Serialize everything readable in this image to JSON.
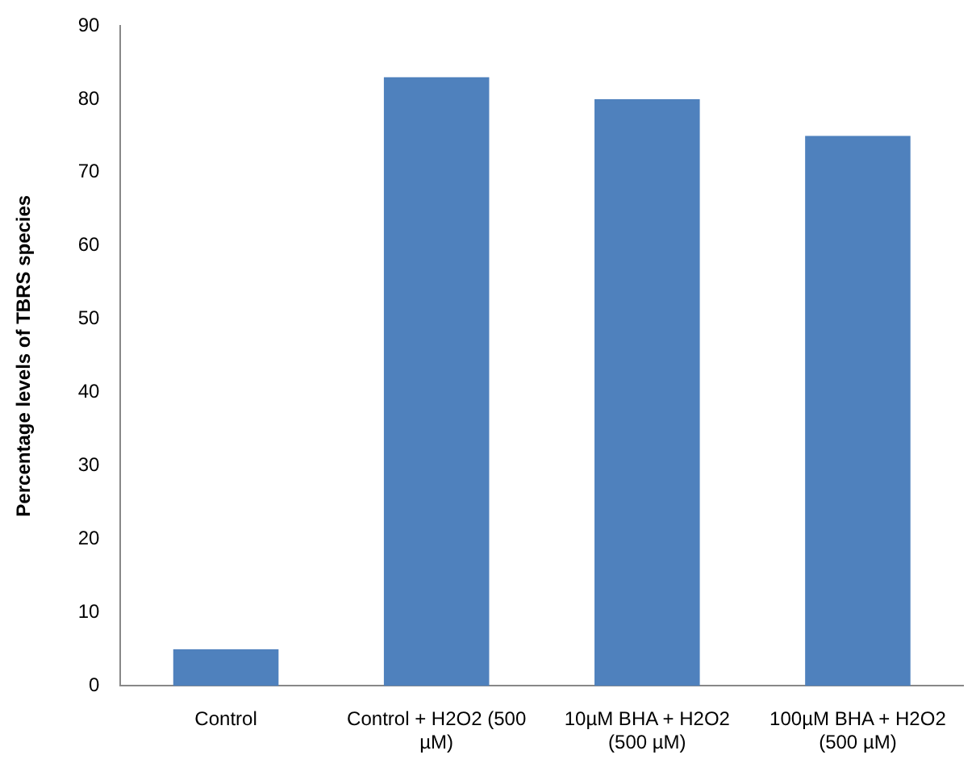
{
  "chart_data": {
    "type": "bar",
    "ylabel": "Percentage levels of TBRS species",
    "categories": [
      "Control",
      "Control + H2O2 (500 µM)",
      "10µM BHA + H2O2 (500 µM)",
      "100µM BHA + H2O2 (500 µM)"
    ],
    "values": [
      5,
      83,
      80,
      75
    ],
    "color": "#4f81bd",
    "ylim": [
      0,
      90
    ],
    "yticks": [
      0,
      10,
      20,
      30,
      40,
      50,
      60,
      70,
      80,
      90
    ],
    "grid": false,
    "legend": false
  }
}
